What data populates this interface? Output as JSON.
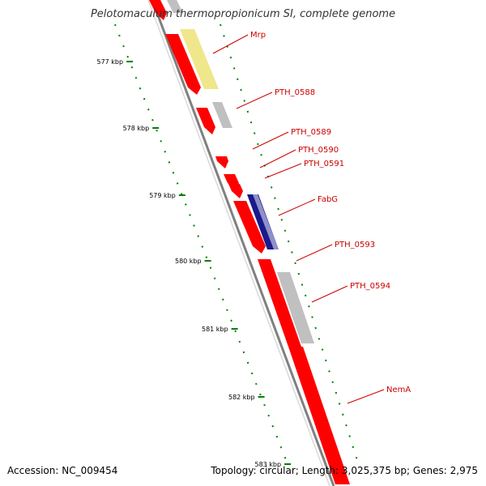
{
  "title": "Pelotomaculum thermopropionicum SI, complete genome",
  "footer": {
    "accession": "Accession: NC_009454",
    "summary": "Topology: circular; Length: 3,025,375 bp; Genes: 2,975"
  },
  "colors": {
    "cds_forward": "#ff0000",
    "cds_forward_dark": "#d00000",
    "gene_unnamed": "#c0c0c0",
    "gene_named_yellow": "#f0e68c",
    "gene_blue": "#1a1a8c",
    "backbone": "#808080",
    "tick_dots": "#008000",
    "label": "#cc0000"
  },
  "ticks": [
    {
      "label": "577 kbp"
    },
    {
      "label": "578 kbp"
    },
    {
      "label": "579 kbp"
    },
    {
      "label": "580 kbp"
    },
    {
      "label": "581 kbp"
    },
    {
      "label": "582 kbp"
    },
    {
      "label": "583 kbp"
    }
  ],
  "genes": [
    {
      "name": "Mrp"
    },
    {
      "name": "PTH_0588"
    },
    {
      "name": "PTH_0589"
    },
    {
      "name": "PTH_0590"
    },
    {
      "name": "PTH_0591"
    },
    {
      "name": "FabG"
    },
    {
      "name": "PTH_0593"
    },
    {
      "name": "PTH_0594"
    },
    {
      "name": "NemA"
    }
  ]
}
